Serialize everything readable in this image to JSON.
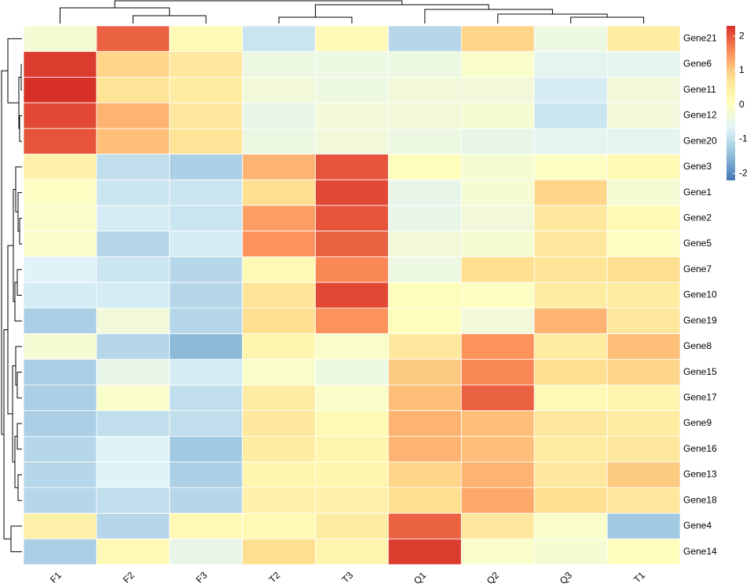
{
  "chart_data": {
    "type": "heatmap",
    "columns": [
      "F1",
      "F2",
      "F3",
      "T2",
      "T3",
      "Q1",
      "Q2",
      "Q3",
      "T1"
    ],
    "rows": [
      "Gene21",
      "Gene6",
      "Gene11",
      "Gene12",
      "Gene20",
      "Gene3",
      "Gene1",
      "Gene2",
      "Gene5",
      "Gene7",
      "Gene10",
      "Gene19",
      "Gene8",
      "Gene15",
      "Gene17",
      "Gene9",
      "Gene16",
      "Gene13",
      "Gene18",
      "Gene4",
      "Gene14"
    ],
    "values": [
      [
        -0.2,
        1.9,
        0.2,
        -0.9,
        0.2,
        -1.1,
        0.9,
        -0.4,
        0.5
      ],
      [
        2.2,
        0.9,
        0.6,
        -0.4,
        -0.4,
        -0.4,
        -0.1,
        -0.6,
        -0.6
      ],
      [
        2.3,
        0.7,
        0.5,
        -0.3,
        -0.4,
        -0.3,
        -0.3,
        -0.8,
        -0.3
      ],
      [
        2.1,
        1.2,
        0.6,
        -0.5,
        -0.3,
        -0.3,
        -0.2,
        -0.9,
        -0.3
      ],
      [
        2.0,
        1.1,
        0.7,
        -0.4,
        -0.3,
        -0.4,
        -0.5,
        -0.6,
        -0.6
      ],
      [
        0.4,
        -1.0,
        -1.2,
        1.2,
        2.0,
        0.1,
        -0.2,
        0.0,
        0.2
      ],
      [
        0.0,
        -0.9,
        -0.9,
        0.8,
        2.1,
        -0.5,
        -0.2,
        0.9,
        -0.2
      ],
      [
        -0.1,
        -0.8,
        -0.9,
        1.4,
        2.0,
        -0.5,
        -0.3,
        0.6,
        0.2
      ],
      [
        -0.1,
        -1.1,
        -0.8,
        1.5,
        1.9,
        -0.3,
        -0.2,
        0.6,
        0.0
      ],
      [
        -0.7,
        -0.9,
        -1.1,
        0.2,
        1.6,
        -0.4,
        0.8,
        0.7,
        0.8
      ],
      [
        -0.8,
        -0.8,
        -1.1,
        0.7,
        2.1,
        0.1,
        0.0,
        0.5,
        0.5
      ],
      [
        -1.2,
        -0.3,
        -1.1,
        0.8,
        1.5,
        0.1,
        -0.3,
        1.2,
        0.6
      ],
      [
        -0.2,
        -1.1,
        -1.5,
        0.3,
        -0.1,
        0.6,
        1.5,
        0.5,
        1.1
      ],
      [
        -1.2,
        -0.5,
        -0.8,
        -0.1,
        -0.4,
        1.0,
        1.6,
        0.8,
        0.9
      ],
      [
        -1.2,
        -0.1,
        -1.0,
        0.5,
        -0.1,
        1.1,
        1.9,
        0.2,
        0.3
      ],
      [
        -1.2,
        -1.0,
        -1.0,
        0.6,
        0.2,
        1.2,
        1.1,
        0.6,
        0.5
      ],
      [
        -1.1,
        -0.7,
        -1.3,
        0.5,
        0.3,
        1.2,
        1.1,
        0.5,
        0.6
      ],
      [
        -1.1,
        -0.7,
        -1.2,
        0.3,
        0.3,
        0.9,
        1.2,
        0.6,
        1.0
      ],
      [
        -1.1,
        -1.0,
        -1.1,
        0.4,
        0.4,
        0.8,
        1.3,
        0.8,
        0.6
      ],
      [
        0.4,
        -1.1,
        0.2,
        0.2,
        0.5,
        1.9,
        0.6,
        -0.1,
        -1.3
      ],
      [
        -1.2,
        0.2,
        -0.5,
        0.8,
        0.3,
        2.2,
        -0.1,
        -0.2,
        0.1
      ]
    ],
    "zlim": [
      -2.2,
      2.3
    ],
    "colorbar_ticks": [
      -2,
      -1,
      0,
      1,
      2
    ],
    "colors": [
      "#4575b4",
      "#91bfdb",
      "#e0f3f8",
      "#ffffbf",
      "#fee090",
      "#fc8d59",
      "#d73027"
    ]
  }
}
